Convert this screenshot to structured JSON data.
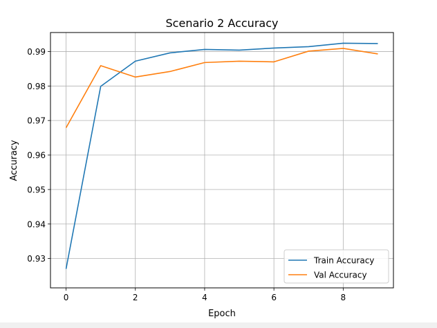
{
  "chart_data": {
    "type": "line",
    "title": "Scenario 2 Accuracy",
    "xlabel": "Epoch",
    "ylabel": "Accuracy",
    "x": [
      0,
      1,
      2,
      3,
      4,
      5,
      6,
      7,
      8,
      9
    ],
    "xlim": [
      -0.45,
      9.45
    ],
    "ylim": [
      0.9215,
      0.9955
    ],
    "xticks": [
      0,
      2,
      4,
      6,
      8
    ],
    "yticks": [
      0.93,
      0.94,
      0.95,
      0.96,
      0.97,
      0.98,
      0.99
    ],
    "grid": true,
    "legend_position": "lower-right",
    "series": [
      {
        "name": "Train Accuracy",
        "color": "#1f77b4",
        "values": [
          0.927,
          0.9799,
          0.9872,
          0.9896,
          0.9906,
          0.9904,
          0.991,
          0.9914,
          0.9924,
          0.9923
        ]
      },
      {
        "name": "Val Accuracy",
        "color": "#ff7f0e",
        "values": [
          0.9679,
          0.9859,
          0.9826,
          0.9842,
          0.9868,
          0.9872,
          0.987,
          0.9901,
          0.9909,
          0.9893
        ]
      }
    ]
  }
}
